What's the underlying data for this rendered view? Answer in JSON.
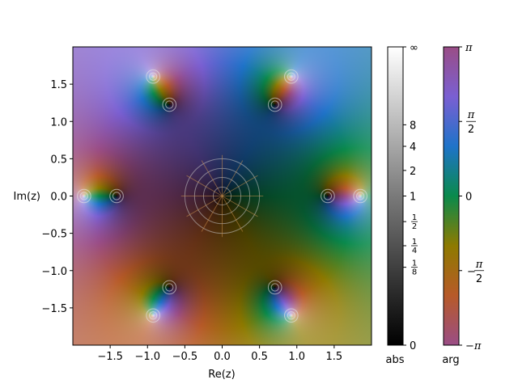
{
  "chart_data": {
    "type": "heatmap",
    "subtype": "domain coloring of a complex function",
    "xlabel": "Re(z)",
    "ylabel": "Im(z)",
    "xlim": [
      -2,
      2
    ],
    "ylim": [
      -2,
      2
    ],
    "x_ticks": [
      -1.5,
      -1.0,
      -0.5,
      0.0,
      0.5,
      1.0,
      1.5
    ],
    "x_tick_labels": [
      "−1.5",
      "−1.0",
      "−0.5",
      "0.0",
      "0.5",
      "1.0",
      "1.5"
    ],
    "y_ticks": [
      -1.5,
      -1.0,
      -0.5,
      0.0,
      0.5,
      1.0,
      1.5
    ],
    "y_tick_labels": [
      "−1.5",
      "−1.0",
      "−0.5",
      "0.0",
      "0.5",
      "1.0",
      "1.5"
    ],
    "zeros": [
      {
        "re": 0,
        "im": 0,
        "order": 1
      },
      {
        "re": 1.4142,
        "im": 0
      },
      {
        "re": -1.4142,
        "im": 0
      },
      {
        "re": 0.7071,
        "im": 1.2247
      },
      {
        "re": -0.7071,
        "im": 1.2247
      },
      {
        "re": 0.7071,
        "im": -1.2247
      },
      {
        "re": -0.7071,
        "im": -1.2247
      }
    ],
    "poles": [
      {
        "re": 1.85,
        "im": 0
      },
      {
        "re": -1.85,
        "im": 0
      },
      {
        "re": 0.925,
        "im": 1.602
      },
      {
        "re": -0.925,
        "im": 1.602
      },
      {
        "re": 0.925,
        "im": -1.602
      },
      {
        "re": -0.925,
        "im": -1.602
      }
    ],
    "abs_colorbar": {
      "label": "abs",
      "ticks": [
        0,
        0.125,
        0.25,
        0.5,
        1,
        2,
        4,
        8,
        "inf"
      ],
      "tick_labels": [
        "0",
        "1/8",
        "1/4",
        "1/2",
        "1",
        "2",
        "4",
        "8",
        "∞"
      ],
      "colormap": "black to white"
    },
    "arg_colorbar": {
      "label": "arg",
      "ticks": [
        -3.1416,
        -1.5708,
        0,
        1.5708,
        3.1416
      ],
      "tick_labels": [
        "−π",
        "−π/2",
        "0",
        "π/2",
        "π"
      ],
      "colormap": "cyclic: magenta, orange, olive, green, blue, purple"
    },
    "grid": false,
    "contours": "lines of constant modulus and constant argument overlaid"
  },
  "colors": {
    "arg_stops": [
      "#9a4d86",
      "#b75a28",
      "#8e7a00",
      "#0a8a4c",
      "#1f73c9",
      "#7a5fd2",
      "#9a4d86"
    ]
  }
}
